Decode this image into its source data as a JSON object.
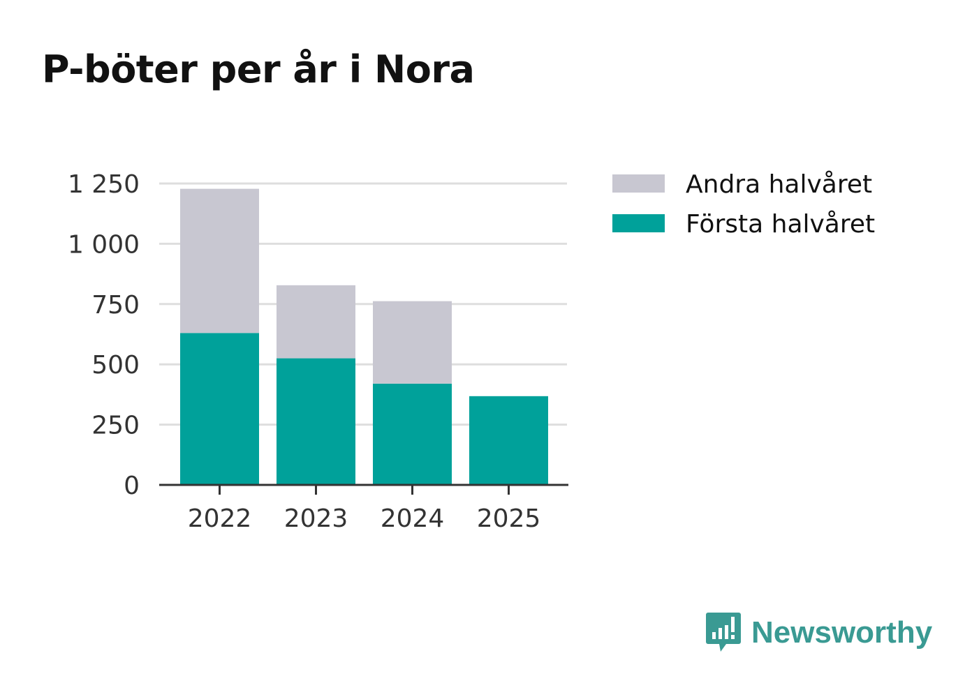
{
  "title": "P-böter per år i Nora",
  "brand": {
    "name": "Newsworthy",
    "icon": "newsworthy-logo-icon",
    "color": "#3a9a93"
  },
  "chart_data": {
    "type": "bar",
    "stacked": true,
    "title": "P-böter per år i Nora",
    "xlabel": "",
    "ylabel": "",
    "categories": [
      "2022",
      "2023",
      "2024",
      "2025"
    ],
    "series": [
      {
        "name": "Första halvåret",
        "color": "#00a19a",
        "values": [
          630,
          525,
          420,
          368
        ]
      },
      {
        "name": "Andra halvåret",
        "color": "#c8c7d1",
        "values": [
          598,
          303,
          342,
          0
        ]
      }
    ],
    "legend_order": [
      "Andra halvåret",
      "Första halvåret"
    ],
    "ylim": [
      0,
      1250
    ],
    "yticks": [
      0,
      250,
      500,
      750,
      1000,
      1250
    ],
    "ytick_labels": [
      "0",
      "250",
      "500",
      "750",
      "1 000",
      "1 250"
    ],
    "grid": true,
    "legend_position": "right"
  }
}
